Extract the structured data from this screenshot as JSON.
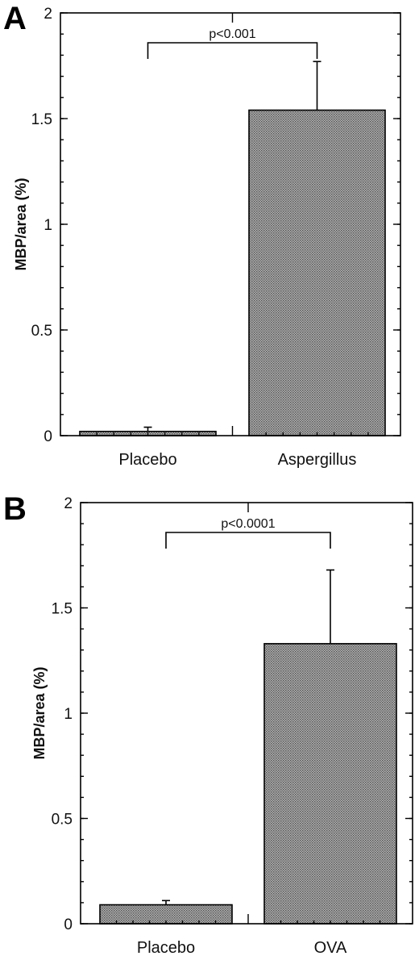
{
  "colors": {
    "bar_fill": "#8f8f8f",
    "axis": "#000000",
    "background": "#ffffff"
  },
  "chart_data": [
    {
      "type": "bar",
      "panel_label": "A",
      "ylabel": "MBP/area (%)",
      "ylim": [
        0,
        2
      ],
      "yticks": [
        0,
        0.5,
        1,
        1.5,
        2
      ],
      "ytick_labels": [
        "0",
        "0.5",
        "1",
        "1.5",
        "2"
      ],
      "categories": [
        "Placebo",
        "Aspergillus"
      ],
      "values": [
        0.02,
        1.54
      ],
      "errors": [
        0.02,
        0.23
      ],
      "annotation": {
        "text": "p<0.001",
        "between": [
          0,
          1
        ]
      }
    },
    {
      "type": "bar",
      "panel_label": "B",
      "ylabel": "MBP/area (%)",
      "ylim": [
        0,
        2
      ],
      "yticks": [
        0,
        0.5,
        1,
        1.5,
        2
      ],
      "ytick_labels": [
        "0",
        "0.5",
        "1",
        "1.5",
        "2"
      ],
      "categories": [
        "Placebo",
        "OVA"
      ],
      "values": [
        0.09,
        1.33
      ],
      "errors": [
        0.02,
        0.35
      ],
      "annotation": {
        "text": "p<0.0001",
        "between": [
          0,
          1
        ]
      }
    }
  ]
}
